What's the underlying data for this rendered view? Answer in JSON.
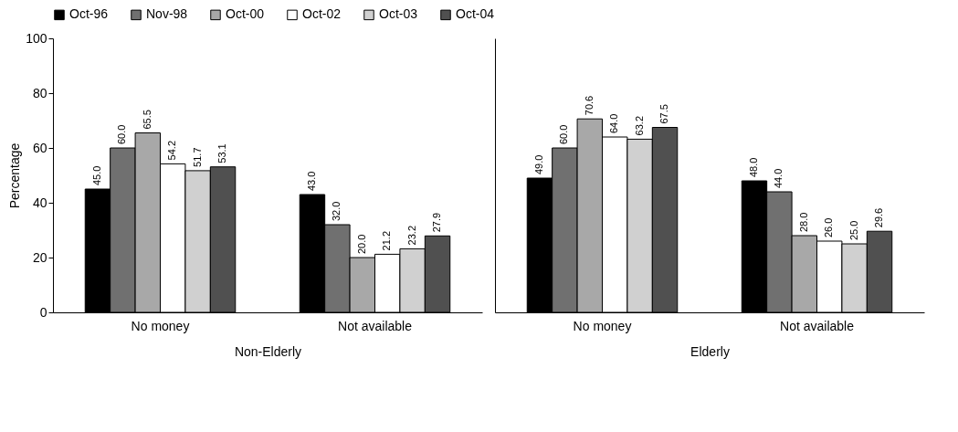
{
  "chart_data": [
    {
      "type": "bar",
      "xlabel": "Non-Elderly",
      "ylabel": "Percentage",
      "categories": [
        "No money",
        "Not available"
      ],
      "ylim": [
        0,
        100
      ],
      "yticks": [
        0,
        20,
        40,
        60,
        80,
        100
      ],
      "grid": false,
      "legend": "top",
      "series": [
        {
          "name": "Oct-96",
          "color": "#000000",
          "values": [
            45.0,
            43.0
          ],
          "value_labels": [
            "45.0",
            "43.0"
          ]
        },
        {
          "name": "Nov-98",
          "color": "#707070",
          "values": [
            60.0,
            32.0
          ],
          "value_labels": [
            "60.0",
            "32.0"
          ]
        },
        {
          "name": "Oct-00",
          "color": "#a8a8a8",
          "values": [
            65.5,
            20.0
          ],
          "value_labels": [
            "65.5",
            "20.0"
          ]
        },
        {
          "name": "Oct-02",
          "color": "#ffffff",
          "values": [
            54.2,
            21.2
          ],
          "value_labels": [
            "54.2",
            "21.2"
          ]
        },
        {
          "name": "Oct-03",
          "color": "#d0d0d0",
          "values": [
            51.7,
            23.2
          ],
          "value_labels": [
            "51.7",
            "23.2"
          ]
        },
        {
          "name": "Oct-04",
          "color": "#505050",
          "values": [
            53.1,
            27.9
          ],
          "value_labels": [
            "53.1",
            "27.9"
          ]
        }
      ]
    },
    {
      "type": "bar",
      "xlabel": "Elderly",
      "categories": [
        "No money",
        "Not available"
      ],
      "ylim": [
        0,
        100
      ],
      "yticks": [
        0,
        20,
        40,
        60,
        80,
        100
      ],
      "grid": false,
      "tick_labels": "x",
      "series": [
        {
          "color": "#000000",
          "values": [
            49.0,
            48.0
          ],
          "value_labels": [
            "49.0",
            "48.0"
          ]
        },
        {
          "color": "#707070",
          "values": [
            60.0,
            44.0
          ],
          "value_labels": [
            "60.0",
            "44.0"
          ]
        },
        {
          "color": "#a8a8a8",
          "values": [
            70.6,
            28.0
          ],
          "value_labels": [
            "70.6",
            "28.0"
          ]
        },
        {
          "color": "#ffffff",
          "values": [
            64.0,
            26.0
          ],
          "value_labels": [
            "64.0",
            "26.0"
          ]
        },
        {
          "color": "#d0d0d0",
          "values": [
            63.2,
            25.0
          ],
          "value_labels": [
            "63.2",
            "25.0"
          ]
        },
        {
          "color": "#505050",
          "values": [
            67.5,
            29.6
          ],
          "value_labels": [
            "67.5",
            "29.6"
          ]
        }
      ]
    }
  ]
}
